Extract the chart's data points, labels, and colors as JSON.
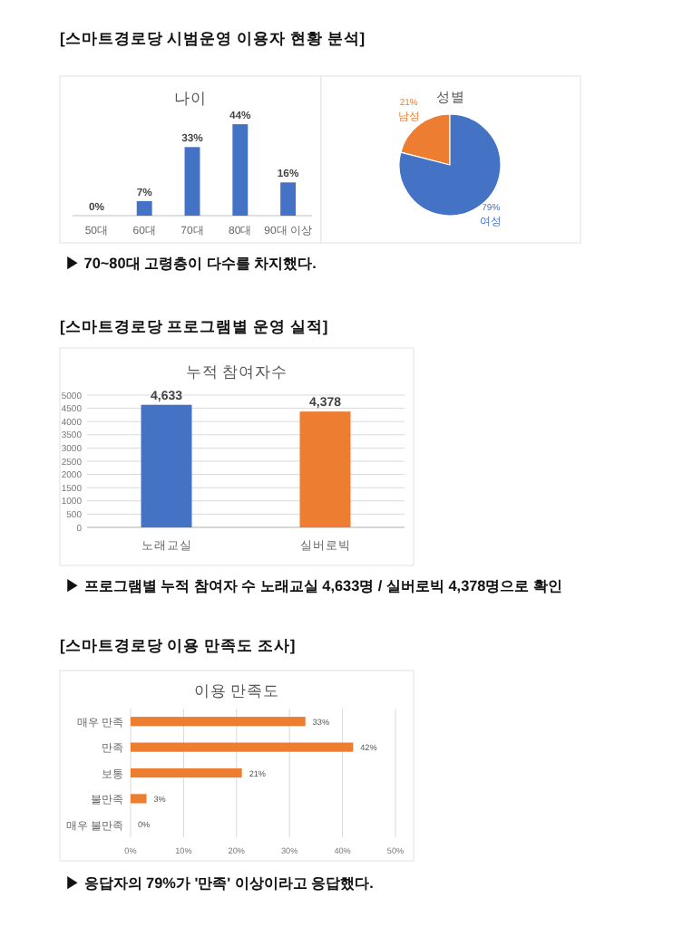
{
  "chart_data": [
    {
      "type": "bar",
      "title": "나이",
      "categories": [
        "50대",
        "60대",
        "70대",
        "80대",
        "90대 이상"
      ],
      "values": [
        0,
        7,
        33,
        44,
        16
      ],
      "color": "#4472c4",
      "value_labels": [
        "0%",
        "7%",
        "33%",
        "44%",
        "16%"
      ],
      "tick_labels": "x",
      "annotations": [
        "[스마트경로당 시범운영 이용자 현황 분석]",
        "▶ 70~80대 고령층이 다수를 차지했다."
      ]
    },
    {
      "type": "pie",
      "title": "성별",
      "categories": [
        "남성",
        "여성"
      ],
      "values": [
        21,
        79
      ],
      "colors": [
        "#ed7d31",
        "#4472c4"
      ],
      "value_labels": [
        "21%",
        "79%"
      ]
    },
    {
      "type": "bar",
      "title": "누적 참여자수",
      "categories": [
        "노래교실",
        "실버로빅"
      ],
      "values": [
        4633,
        4378
      ],
      "colors": [
        "#4472c4",
        "#ed7d31"
      ],
      "value_labels": [
        "4,633",
        "4,378"
      ],
      "ylim": [
        0,
        5000
      ],
      "yticks": [
        0,
        500,
        1000,
        1500,
        2000,
        2500,
        3000,
        3500,
        4000,
        4500,
        5000
      ],
      "grid": "y",
      "annotations": [
        "[스마트경로당 프로그램별 운영 실적]",
        "▶ 프로그램별 누적 참여자 수 노래교실 4,633명 / 실버로빅 4,378명으로 확인"
      ]
    },
    {
      "type": "bar",
      "orientation": "horizontal",
      "title": "이용 만족도",
      "categories": [
        "매우 만족",
        "만족",
        "보통",
        "불만족",
        "매우 불만족"
      ],
      "values": [
        33,
        42,
        21,
        3,
        0
      ],
      "color": "#ed7d31",
      "value_labels": [
        "33%",
        "42%",
        "21%",
        "3%",
        "0%"
      ],
      "xlim": [
        0,
        50
      ],
      "xticks": [
        {
          "value": 0,
          "label": "0%"
        },
        {
          "value": 10,
          "label": "10%"
        },
        {
          "value": 20,
          "label": "20%"
        },
        {
          "value": 30,
          "label": "30%"
        },
        {
          "value": 40,
          "label": "40%"
        },
        {
          "value": 50,
          "label": "50%"
        }
      ],
      "grid": "x",
      "annotations": [
        "[스마트경로당 이용 만족도 조사]",
        "▶ 응답자의 79%가 '만족' 이상이라고 응답했다."
      ]
    }
  ]
}
